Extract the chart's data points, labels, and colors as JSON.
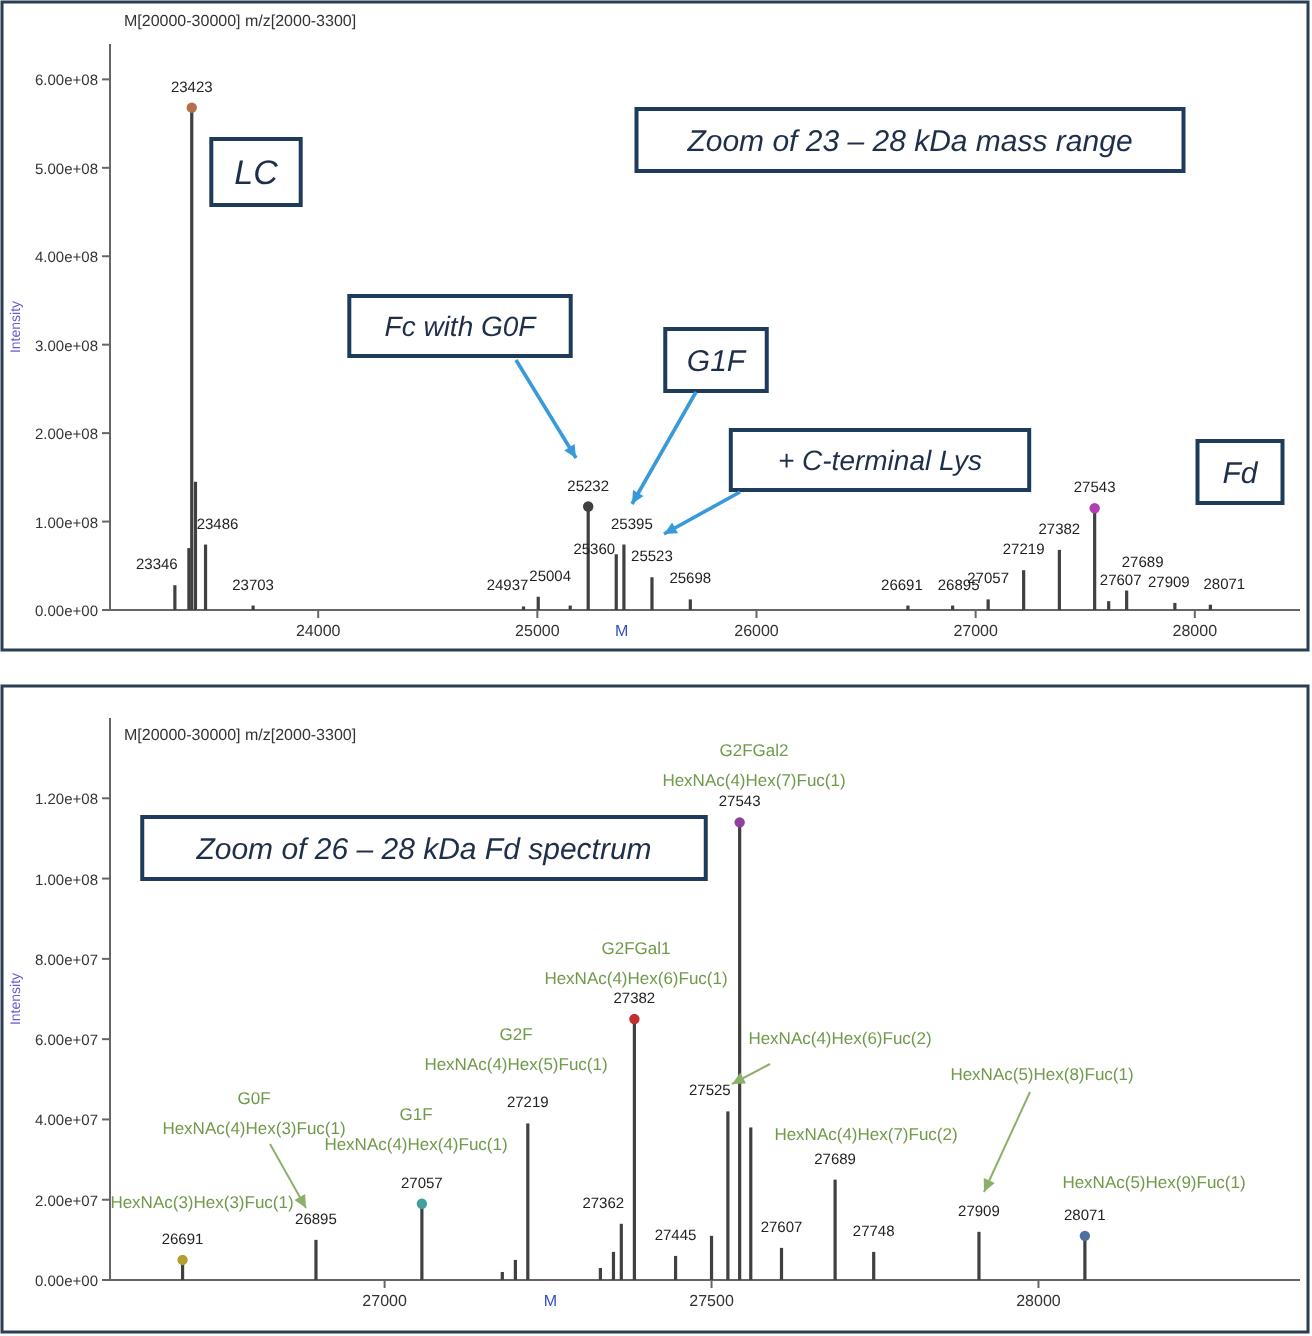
{
  "chart_data": [
    {
      "type": "bar",
      "xlabel": "M",
      "ylabel": "Intensity",
      "xlim": [
        23050,
        28480
      ],
      "ylim": [
        0,
        640000000
      ],
      "xticks": [
        24000,
        25000,
        26000,
        27000,
        28000
      ],
      "yticks": [
        {
          "value": 0,
          "label": "0.00e+00"
        },
        {
          "value": 100000000,
          "label": "1.00e+08"
        },
        {
          "value": 200000000,
          "label": "2.00e+08"
        },
        {
          "value": 300000000,
          "label": "3.00e+08"
        },
        {
          "value": 400000000,
          "label": "4.00e+08"
        },
        {
          "value": 500000000,
          "label": "5.00e+08"
        },
        {
          "value": 600000000,
          "label": "6.00e+08"
        }
      ],
      "x": [
        23346,
        23410,
        23423,
        23440,
        23486,
        23703,
        24937,
        25004,
        25150,
        25232,
        25360,
        25395,
        25523,
        25698,
        26691,
        26895,
        27057,
        27219,
        27382,
        27543,
        27607,
        27689,
        27909,
        28071
      ],
      "series": [
        {
          "type": "bar",
          "color": "#404040",
          "values": [
            28000000,
            70000000,
            568000000,
            145000000,
            74000000,
            5000000,
            4000000,
            15000000,
            5000000,
            117000000,
            63000000,
            74000000,
            37000000,
            12000000,
            5000000,
            5000000,
            12000000,
            45000000,
            68000000,
            115000000,
            10000000,
            22000000,
            8000000,
            6000000
          ]
        },
        {
          "type": "scatter",
          "marker": "circle",
          "x": [
            23423,
            25232,
            27543
          ],
          "values": [
            568000000,
            117000000,
            115000000
          ],
          "colors": [
            "#b5704a",
            "#404040",
            "#b040b0"
          ]
        }
      ],
      "annotations": [
        "M[20000-30000] m/z[2000-3300]",
        "LC",
        "Zoom of 23 – 28 kDa mass range",
        "Fc with G0F",
        "G1F",
        "+ C-terminal Lys",
        "Fd",
        {
          "text": "23346",
          "x": 23346,
          "y": 28000000
        },
        {
          "text": "23423",
          "x": 23423,
          "y": 568000000
        },
        {
          "text": "23486",
          "x": 23486,
          "y": 74000000
        },
        {
          "text": "23703",
          "x": 23703,
          "y": 5000000
        },
        {
          "text": "24937",
          "x": 24937,
          "y": 4000000
        },
        {
          "text": "25004",
          "x": 25004,
          "y": 15000000
        },
        {
          "text": "25232",
          "x": 25232,
          "y": 117000000
        },
        {
          "text": "25360",
          "x": 25360,
          "y": 63000000
        },
        {
          "text": "25395",
          "x": 25395,
          "y": 74000000
        },
        {
          "text": "25523",
          "x": 25523,
          "y": 37000000
        },
        {
          "text": "25698",
          "x": 25698,
          "y": 12000000
        },
        {
          "text": "26691",
          "x": 26691,
          "y": 5000000
        },
        {
          "text": "26895",
          "x": 26895,
          "y": 5000000
        },
        {
          "text": "27057",
          "x": 27057,
          "y": 12000000
        },
        {
          "text": "27219",
          "x": 27219,
          "y": 45000000
        },
        {
          "text": "27382",
          "x": 27382,
          "y": 68000000
        },
        {
          "text": "27543",
          "x": 27543,
          "y": 115000000
        },
        {
          "text": "27607",
          "x": 27607,
          "y": 10000000
        },
        {
          "text": "27689",
          "x": 27689,
          "y": 22000000
        },
        {
          "text": "27909",
          "x": 27909,
          "y": 8000000
        },
        {
          "text": "28071",
          "x": 28071,
          "y": 6000000
        }
      ]
    },
    {
      "type": "bar",
      "xlabel": "M",
      "ylabel": "Intensity",
      "xlim": [
        26580,
        28400
      ],
      "ylim": [
        0,
        140000000
      ],
      "xticks": [
        27000,
        27500,
        28000
      ],
      "yticks": [
        {
          "value": 0,
          "label": "0.00e+00"
        },
        {
          "value": 20000000,
          "label": "2.00e+07"
        },
        {
          "value": 40000000,
          "label": "4.00e+07"
        },
        {
          "value": 60000000,
          "label": "6.00e+07"
        },
        {
          "value": 80000000,
          "label": "8.00e+07"
        },
        {
          "value": 100000000,
          "label": "1.00e+08"
        },
        {
          "value": 120000000,
          "label": "1.20e+08"
        }
      ],
      "x": [
        26691,
        26895,
        27057,
        27180,
        27200,
        27219,
        27330,
        27350,
        27362,
        27382,
        27445,
        27500,
        27525,
        27543,
        27560,
        27607,
        27689,
        27748,
        27909,
        28071
      ],
      "series": [
        {
          "type": "bar",
          "color": "#404040",
          "values": [
            5000000,
            10000000,
            19000000,
            2000000,
            5000000,
            39000000,
            3000000,
            7000000,
            14000000,
            65000000,
            6000000,
            11000000,
            42000000,
            114000000,
            38000000,
            8000000,
            25000000,
            7000000,
            12000000,
            11000000
          ]
        },
        {
          "type": "scatter",
          "marker": "circle",
          "x": [
            26691,
            27057,
            27382,
            27543,
            28071
          ],
          "values": [
            5000000,
            19000000,
            65000000,
            114000000,
            11000000
          ],
          "colors": [
            "#b0a030",
            "#40a0a0",
            "#c03030",
            "#9040a0",
            "#5070a0"
          ]
        }
      ],
      "annotations": [
        "M[20000-30000] m/z[2000-3300]",
        "Zoom of 26 – 28 kDa Fd spectrum",
        {
          "text": "HexNAc(3)Hex(3)Fuc(1)",
          "x": 26691,
          "y": 5000000
        },
        "G0F\nHexNAc(4)Hex(3)Fuc(1)",
        {
          "text": "G1F\nHexNAc(4)Hex(4)Fuc(1)",
          "x": 27057,
          "y": 19000000
        },
        {
          "text": "G2F\nHexNAc(4)Hex(5)Fuc(1)",
          "x": 27219,
          "y": 39000000
        },
        {
          "text": "G2FGal1\nHexNAc(4)Hex(6)Fuc(1)",
          "x": 27382,
          "y": 65000000
        },
        {
          "text": "G2FGal2\nHexNAc(4)Hex(7)Fuc(1)",
          "x": 27543,
          "y": 114000000
        },
        "HexNAc(4)Hex(6)Fuc(2)",
        {
          "text": "HexNAc(4)Hex(7)Fuc(2)",
          "x": 27689,
          "y": 25000000
        },
        "HexNAc(5)Hex(8)Fuc(1)",
        {
          "text": "HexNAc(5)Hex(9)Fuc(1)",
          "x": 28071,
          "y": 11000000
        },
        {
          "text": "26691",
          "x": 26691,
          "y": 5000000
        },
        {
          "text": "26895",
          "x": 26895,
          "y": 10000000
        },
        {
          "text": "27057",
          "x": 27057,
          "y": 19000000
        },
        {
          "text": "27219",
          "x": 27219,
          "y": 39000000
        },
        {
          "text": "27362",
          "x": 27362,
          "y": 14000000
        },
        {
          "text": "27382",
          "x": 27382,
          "y": 65000000
        },
        {
          "text": "27445",
          "x": 27445,
          "y": 6000000
        },
        {
          "text": "27525",
          "x": 27525,
          "y": 42000000
        },
        {
          "text": "27543",
          "x": 27543,
          "y": 114000000
        },
        {
          "text": "27607",
          "x": 27607,
          "y": 8000000
        },
        {
          "text": "27689",
          "x": 27689,
          "y": 25000000
        },
        {
          "text": "27748",
          "x": 27748,
          "y": 7000000
        },
        {
          "text": "27909",
          "x": 27909,
          "y": 12000000
        },
        {
          "text": "28071",
          "x": 28071,
          "y": 11000000
        }
      ]
    }
  ]
}
